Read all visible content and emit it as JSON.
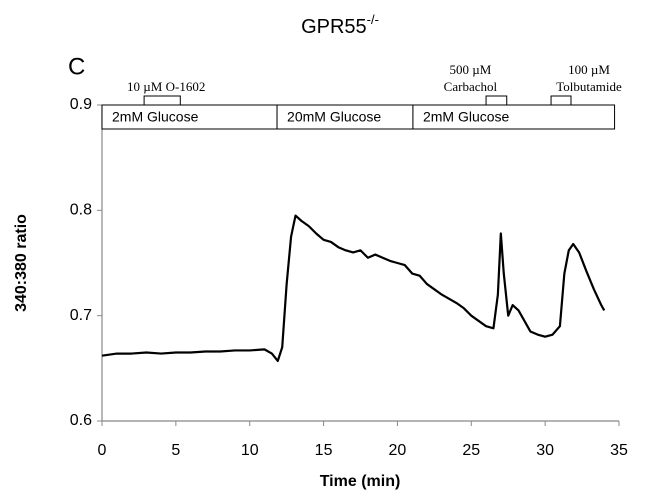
{
  "chart_data": {
    "type": "line",
    "title": "GPR55",
    "title_superscript": "-/-",
    "panel_label": "C",
    "xlabel": "Time (min)",
    "ylabel": "340:380 ratio",
    "color": "#000000",
    "x": [
      0,
      1,
      2,
      3,
      4,
      5,
      6,
      7,
      8,
      9,
      10,
      11,
      11.5,
      11.9,
      12.2,
      12.5,
      12.8,
      13.1,
      13.5,
      14,
      14.5,
      15,
      15.5,
      16,
      16.5,
      17,
      17.5,
      18,
      18.5,
      19,
      19.5,
      20,
      20.5,
      21,
      21.5,
      22,
      22.5,
      23,
      23.5,
      24,
      24.5,
      25,
      25.5,
      26,
      26.5,
      26.8,
      27,
      27.2,
      27.5,
      27.8,
      28.2,
      28.6,
      29,
      29.5,
      30,
      30.5,
      31,
      31.3,
      31.6,
      31.9,
      32.3,
      32.8,
      33.3,
      33.8,
      34
    ],
    "values": [
      0.662,
      0.664,
      0.664,
      0.665,
      0.664,
      0.665,
      0.665,
      0.666,
      0.666,
      0.667,
      0.667,
      0.668,
      0.664,
      0.657,
      0.67,
      0.73,
      0.775,
      0.795,
      0.79,
      0.785,
      0.778,
      0.772,
      0.77,
      0.765,
      0.762,
      0.76,
      0.762,
      0.755,
      0.758,
      0.755,
      0.752,
      0.75,
      0.748,
      0.74,
      0.738,
      0.73,
      0.725,
      0.72,
      0.716,
      0.712,
      0.707,
      0.7,
      0.695,
      0.69,
      0.688,
      0.72,
      0.778,
      0.74,
      0.7,
      0.71,
      0.705,
      0.695,
      0.685,
      0.682,
      0.68,
      0.682,
      0.69,
      0.74,
      0.762,
      0.768,
      0.76,
      0.742,
      0.725,
      0.71,
      0.705
    ],
    "xlim": [
      0,
      35
    ],
    "xticks": [
      0,
      5,
      10,
      15,
      20,
      25,
      30,
      35
    ],
    "ylim": [
      0.6,
      0.9
    ],
    "yticks": [
      0.6,
      0.7,
      0.8,
      0.9
    ],
    "stimuli": [
      {
        "label": [
          "10 µM O-1602"
        ],
        "start": 2.85,
        "end": 5.3
      },
      {
        "label": [
          "500 µM",
          "Carbachol"
        ],
        "start": 26.0,
        "end": 27.4
      },
      {
        "label": [
          "100 µM",
          "Tolbutamide"
        ],
        "start": 30.4,
        "end": 31.75
      }
    ],
    "conditions": [
      {
        "label": "2mM Glucose",
        "start": 0,
        "end": 11.85
      },
      {
        "label": "20mM Glucose",
        "start": 11.85,
        "end": 21.05
      },
      {
        "label": "2mM Glucose",
        "start": 21.05,
        "end": 34.7
      }
    ]
  }
}
